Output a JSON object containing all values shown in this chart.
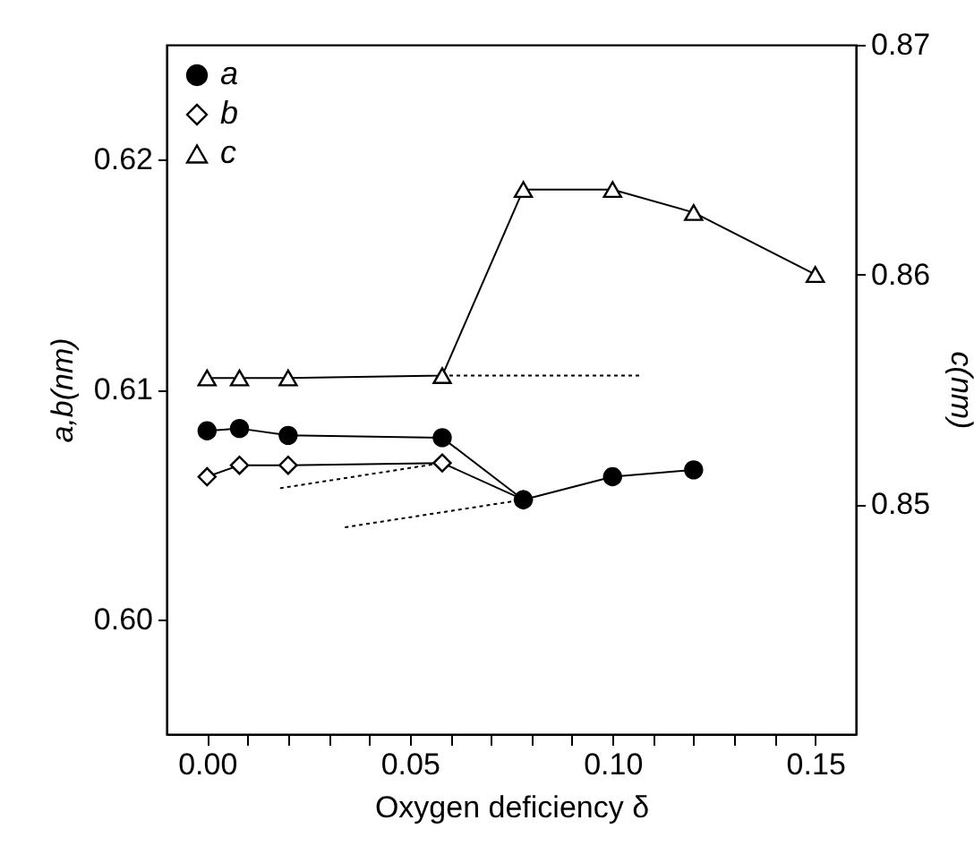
{
  "chart_data": {
    "type": "line",
    "xlabel": "Oxygen deficiency δ",
    "ylabel": "a,b(nm)",
    "y2label": "c(nm)",
    "xlim": [
      -0.01,
      0.16
    ],
    "xticks": [
      {
        "value": 0,
        "label": "0.00"
      },
      {
        "value": 0.01,
        "label": null
      },
      {
        "value": 0.02,
        "label": null
      },
      {
        "value": 0.03,
        "label": null
      },
      {
        "value": 0.04,
        "label": null
      },
      {
        "value": 0.05,
        "label": "0.05"
      },
      {
        "value": 0.06,
        "label": null
      },
      {
        "value": 0.07,
        "label": null
      },
      {
        "value": 0.08,
        "label": null
      },
      {
        "value": 0.09,
        "label": null
      },
      {
        "value": 0.1,
        "label": "0.10"
      },
      {
        "value": 0.11,
        "label": null
      },
      {
        "value": 0.12,
        "label": null
      },
      {
        "value": 0.13,
        "label": null
      },
      {
        "value": 0.14,
        "label": null
      },
      {
        "value": 0.15,
        "label": "0.15"
      }
    ],
    "ylim": [
      0.595,
      0.625
    ],
    "yticks": [
      {
        "value": 0.6,
        "label": "0.60"
      },
      {
        "value": 0.61,
        "label": "0.61"
      },
      {
        "value": 0.62,
        "label": "0.62"
      }
    ],
    "y2lim": [
      0.84,
      0.87
    ],
    "y2ticks": [
      0.85,
      0.86,
      0.87
    ],
    "legend": "top left",
    "grid": false,
    "series": [
      {
        "name": "a",
        "color": "#000000",
        "marker": "circle",
        "x": [
          0,
          0.008,
          0.02,
          0.058,
          0.078,
          0.1,
          0.12
        ],
        "values": [
          0.6082,
          0.6083,
          0.608,
          0.6079,
          0.6052,
          0.6062,
          0.6065
        ]
      },
      {
        "name": "b",
        "color": "#000000",
        "marker": "diamond",
        "x": [
          0,
          0.008,
          0.02,
          0.058,
          0.078
        ],
        "values": [
          0.6062,
          0.6067,
          0.6067,
          0.6068,
          0.6052
        ]
      },
      {
        "name": "c",
        "color": "#000000",
        "marker": "triangle",
        "axis": "y2",
        "x": [
          0,
          0.008,
          0.02,
          0.058,
          0.078,
          0.1,
          0.12,
          0.15
        ],
        "values": [
          0.8555,
          0.8555,
          0.8555,
          0.8556,
          0.8637,
          0.8637,
          0.8627,
          0.86
        ]
      },
      {
        "color": "#000000",
        "marker": "none",
        "line_style": "dotted",
        "axis": "y2",
        "x": [
          0.058,
          0.107
        ],
        "values": [
          0.8556,
          0.8556
        ]
      },
      {
        "color": "#000000",
        "marker": "none",
        "line_style": "dotted",
        "x": [
          0.058,
          0.018
        ],
        "values": [
          0.6068,
          0.6057
        ]
      },
      {
        "color": "#000000",
        "marker": "none",
        "line_style": "dotted",
        "x": [
          0.078,
          0.034
        ],
        "values": [
          0.6052,
          0.604
        ]
      }
    ]
  }
}
